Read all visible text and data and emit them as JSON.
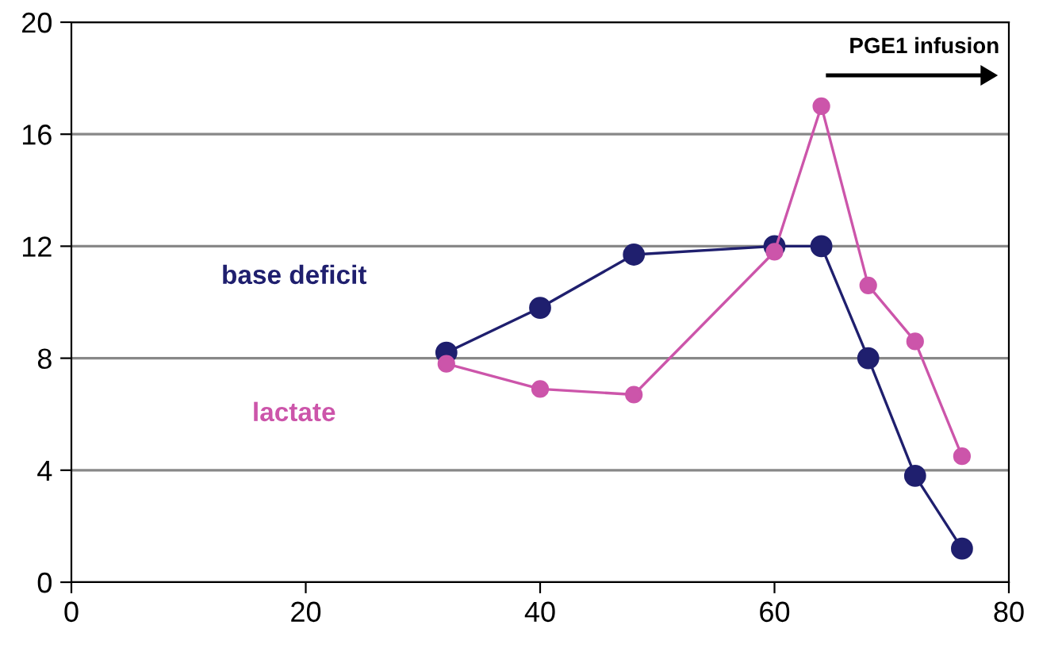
{
  "chart_data": {
    "type": "line",
    "x": [
      32,
      40,
      48,
      60,
      64,
      68,
      72,
      76
    ],
    "series": [
      {
        "name": "base deficit",
        "color": "#1f1f6e",
        "values": [
          8.2,
          9.8,
          11.7,
          12.0,
          12.0,
          8.0,
          3.8,
          1.2
        ]
      },
      {
        "name": "lactate",
        "color": "#cc55aa",
        "values": [
          7.8,
          6.9,
          6.7,
          11.8,
          17.0,
          10.6,
          8.6,
          4.5
        ]
      }
    ],
    "xlim": [
      0,
      80
    ],
    "xticks": [
      0,
      20,
      40,
      60,
      80
    ],
    "ylim": [
      0,
      20
    ],
    "yticks": [
      0,
      4,
      8,
      12,
      16,
      20
    ],
    "grid": "y",
    "legend": false,
    "marker": "circle",
    "line_style": "solid",
    "annotations": [
      "PGE1 infusion"
    ]
  }
}
